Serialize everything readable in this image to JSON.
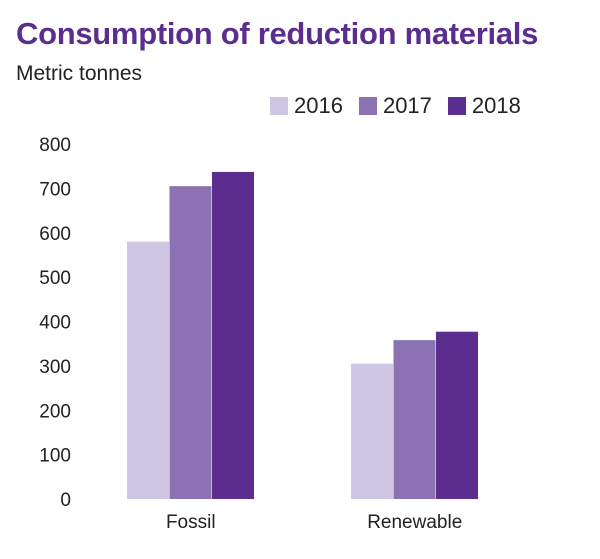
{
  "chart_data": {
    "type": "bar",
    "title": "Consumption of reduction materials",
    "subtitle": "Metric tonnes",
    "categories": [
      "Fossil",
      "Renewable"
    ],
    "series": [
      {
        "name": "2016",
        "color": "#cfc6e3",
        "values": [
          580,
          305
        ]
      },
      {
        "name": "2017",
        "color": "#8b72b2",
        "values": [
          705,
          358
        ]
      },
      {
        "name": "2018",
        "color": "#5a2d8e",
        "values": [
          737,
          377
        ]
      }
    ],
    "yticks": [
      "0",
      "100",
      "200",
      "300",
      "400",
      "500",
      "600",
      "700",
      "800"
    ],
    "ylim": [
      0,
      800
    ],
    "legend_position": "top-right",
    "grid": false
  }
}
